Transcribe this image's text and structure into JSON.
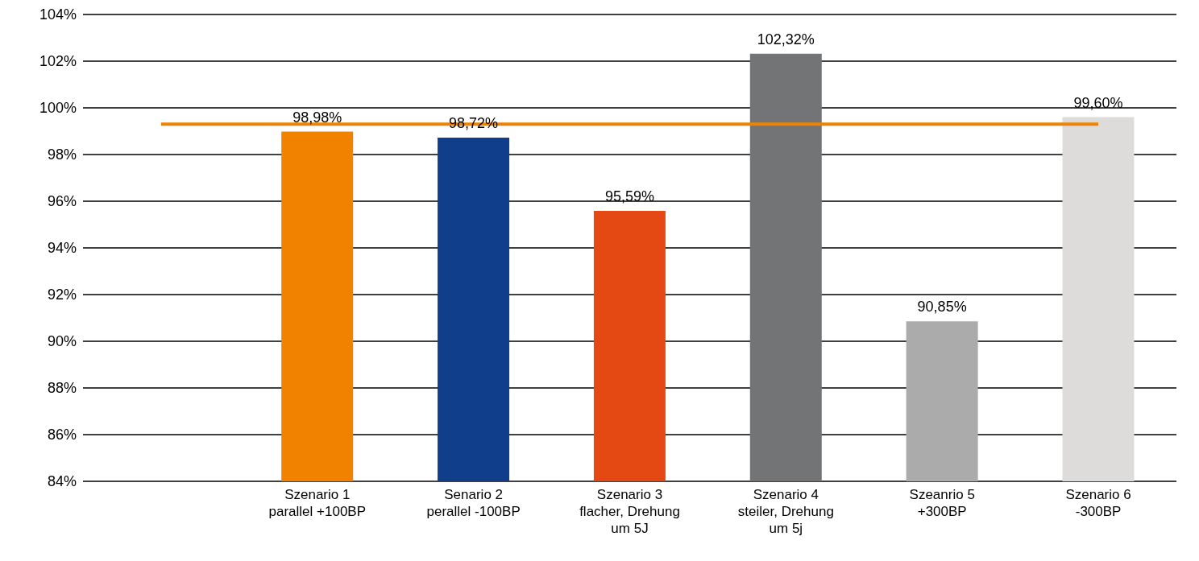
{
  "chart_data": {
    "type": "bar",
    "categories": [
      null,
      "Szenario 1\nparallel +100BP",
      "Senario 2\nperallel -100BP",
      "Szenario 3\nflacher, Drehung\num 5J",
      "Szenario 4\nsteiler, Drehung\num 5j",
      "Szeanrio 5\n+300BP",
      "Szenario 6\n-300BP"
    ],
    "series": [
      {
        "colors": [
          null,
          "#f08200",
          "#103e8a",
          "#e44914",
          "#737476",
          "#ababab",
          "#dddcda"
        ],
        "values": [
          null,
          98.98,
          98.72,
          95.59,
          102.32,
          90.85,
          99.6
        ],
        "value_labels": [
          null,
          "98,98%",
          "98,72%",
          "95,59%",
          "102,32%",
          "90,85%",
          "99,60%"
        ]
      },
      {
        "type": "line",
        "color": "#f08200",
        "values": [
          99.3,
          99.3,
          99.3,
          99.3,
          99.3,
          99.3,
          99.3
        ]
      }
    ],
    "ylim": [
      84,
      104
    ],
    "yticks": [
      {
        "value": 84,
        "label": "84%"
      },
      {
        "value": 86,
        "label": "86%"
      },
      {
        "value": 88,
        "label": "88%"
      },
      {
        "value": 90,
        "label": "90%"
      },
      {
        "value": 92,
        "label": "92%"
      },
      {
        "value": 94,
        "label": "94%"
      },
      {
        "value": 96,
        "label": "96%"
      },
      {
        "value": 98,
        "label": "98%"
      },
      {
        "value": 100,
        "label": "100%"
      },
      {
        "value": 102,
        "label": "102%"
      },
      {
        "value": 104,
        "label": "104%"
      }
    ],
    "grid": "y",
    "legend": false,
    "marker": "none",
    "line_style": "solid"
  }
}
